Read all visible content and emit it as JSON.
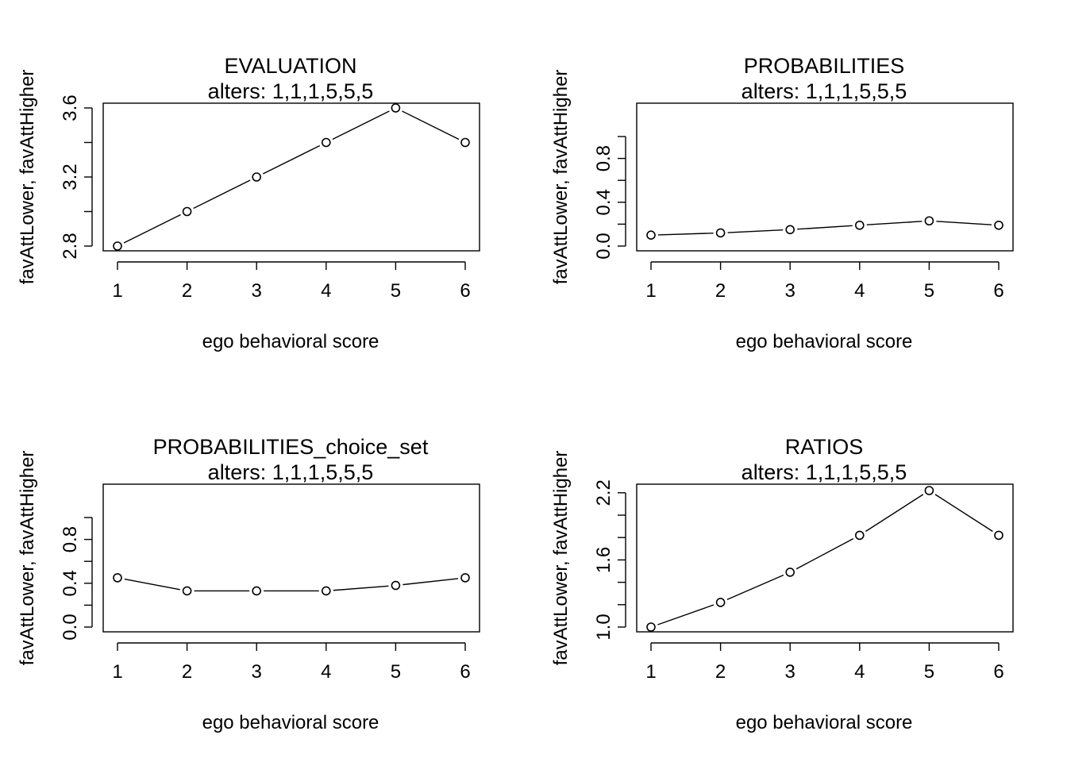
{
  "chart_data": [
    {
      "type": "line",
      "title": "EVALUATION",
      "subtitle": "alters: 1,1,1,5,5,5",
      "xlabel": "ego behavioral score",
      "ylabel": "favAttLower, favAttHigher",
      "x": [
        1,
        2,
        3,
        4,
        5,
        6
      ],
      "y": [
        2.8,
        3.0,
        3.2,
        3.4,
        3.6,
        3.4
      ],
      "xlim": [
        1,
        6
      ],
      "ylim": [
        2.8,
        3.6
      ],
      "xticks": [
        1,
        2,
        3,
        4,
        5,
        6
      ],
      "yticks": [
        2.8,
        3.0,
        3.2,
        3.4,
        3.6
      ],
      "ytick_labels": [
        "2.8",
        "",
        "3.2",
        "",
        "3.6"
      ],
      "grid": false
    },
    {
      "type": "line",
      "title": "PROBABILITIES",
      "subtitle": "alters: 1,1,1,5,5,5",
      "xlabel": "ego behavioral score",
      "ylabel": "favAttLower, favAttHigher",
      "x": [
        1,
        2,
        3,
        4,
        5,
        6
      ],
      "y": [
        0.1,
        0.12,
        0.15,
        0.19,
        0.23,
        0.19
      ],
      "xlim": [
        1,
        6
      ],
      "ylim": [
        0,
        1
      ],
      "xticks": [
        1,
        2,
        3,
        4,
        5,
        6
      ],
      "yticks": [
        0.0,
        0.2,
        0.4,
        0.6,
        0.8,
        1.0
      ],
      "ytick_labels": [
        "0.0",
        "",
        "0.4",
        "",
        "0.8",
        ""
      ],
      "grid": false
    },
    {
      "type": "line",
      "title": "PROBABILITIES_choice_set",
      "subtitle": "alters: 1,1,1,5,5,5",
      "xlabel": "ego behavioral score",
      "ylabel": "favAttLower, favAttHigher",
      "x": [
        1,
        2,
        3,
        4,
        5,
        6
      ],
      "y": [
        0.45,
        0.33,
        0.33,
        0.33,
        0.38,
        0.45
      ],
      "xlim": [
        1,
        6
      ],
      "ylim": [
        0,
        1
      ],
      "xticks": [
        1,
        2,
        3,
        4,
        5,
        6
      ],
      "yticks": [
        0.0,
        0.2,
        0.4,
        0.6,
        0.8,
        1.0
      ],
      "ytick_labels": [
        "0.0",
        "",
        "0.4",
        "",
        "0.8",
        ""
      ],
      "grid": false
    },
    {
      "type": "line",
      "title": "RATIOS",
      "subtitle": "alters: 1,1,1,5,5,5",
      "xlabel": "ego behavioral score",
      "ylabel": "favAttLower, favAttHigher",
      "x": [
        1,
        2,
        3,
        4,
        5,
        6
      ],
      "y": [
        1.0,
        1.22,
        1.49,
        1.82,
        2.22,
        1.82
      ],
      "xlim": [
        1,
        6
      ],
      "ylim": [
        1.0,
        2.22
      ],
      "xticks": [
        1,
        2,
        3,
        4,
        5,
        6
      ],
      "yticks": [
        1.0,
        1.2,
        1.4,
        1.6,
        1.8,
        2.0,
        2.2
      ],
      "ytick_labels": [
        "1.0",
        "",
        "",
        "1.6",
        "",
        "",
        "2.2"
      ],
      "grid": false
    }
  ]
}
